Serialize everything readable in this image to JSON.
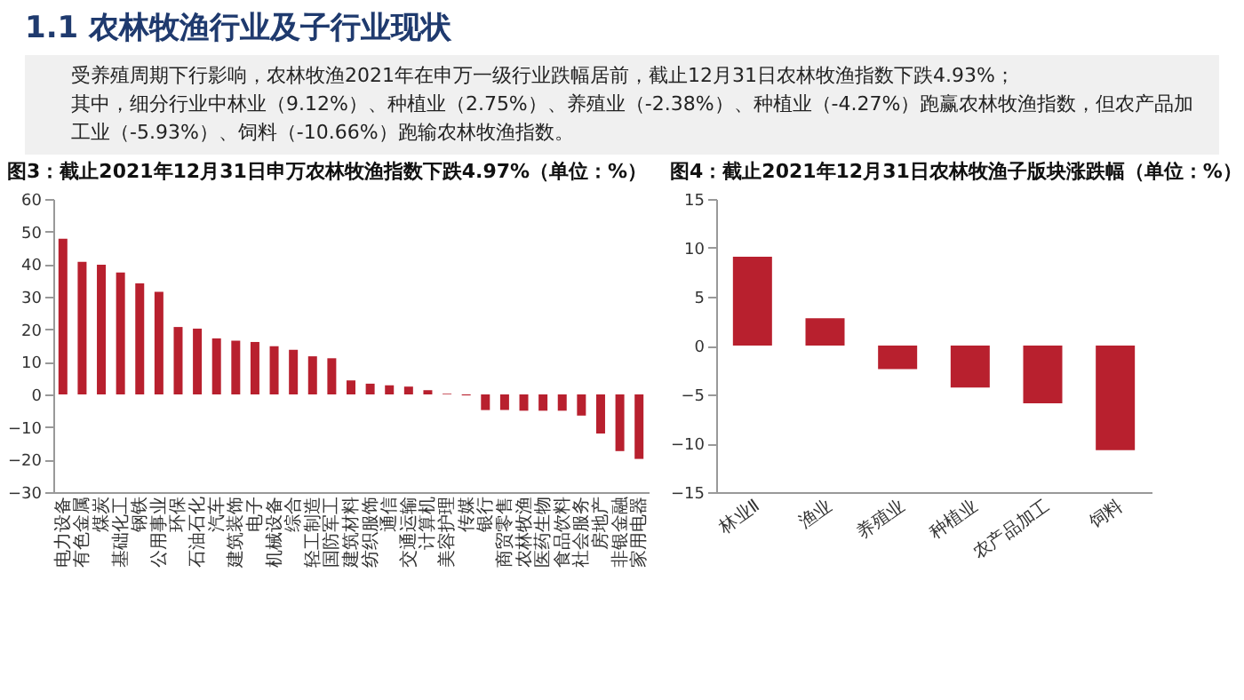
{
  "chart_data": [
    {
      "type": "other",
      "title": "1.1 农林牧渔行业及子行业现状",
      "annotations": [
        "受养殖周期下行影响，农林牧渔2021年在申万一级行业跌幅居前，截止12月31日农林牧渔指数下跌4.93%；",
        "其中，细分行业中林业（9.12%）、种植业（2.75%）、养殖业（-2.38%）、种植业（-4.27%）跑赢农林牧渔指数，但农产品加工业（-5.93%）、饲料（-10.66%）跑输农林牧渔指数。"
      ]
    },
    {
      "type": "bar",
      "title": "图3：截止2021年12月31日申万农林牧渔指数下跌4.97%（单位：%）",
      "categories": [
        "电力设备",
        "有色金属",
        "煤炭",
        "基础化工",
        "钢铁",
        "公用事业",
        "环保",
        "石油石化",
        "汽车",
        "建筑装饰",
        "电子",
        "机械设备",
        "综合",
        "轻工制造",
        "国防军工",
        "建筑材料",
        "纺织服饰",
        "通信",
        "交通运输",
        "计算机",
        "美容护理",
        "传媒",
        "银行",
        "商贸零售",
        "农林牧渔",
        "医药生物",
        "食品饮料",
        "社会服务",
        "房地产",
        "非银金融",
        "家用电器"
      ],
      "values": [
        47.8,
        40.7,
        39.8,
        37.4,
        34.1,
        31.5,
        20.7,
        20.2,
        17.2,
        16.5,
        16.1,
        14.8,
        13.7,
        11.7,
        11.1,
        4.3,
        3.3,
        2.8,
        2.4,
        1.3,
        0.2,
        -0.3,
        -4.8,
        -4.8,
        -5.0,
        -5.0,
        -5.0,
        -6.5,
        -12.0,
        -17.4,
        -19.8
      ],
      "color": "#b8202e",
      "ylim": [
        -30,
        60
      ],
      "yticks": [
        -30,
        -20,
        -10,
        0,
        10,
        20,
        30,
        40,
        50,
        60
      ]
    },
    {
      "type": "bar",
      "title": "图4：截止2021年12月31日农林牧渔子版块涨跌幅（单位：%）",
      "categories": [
        "林业Ⅱ",
        "渔业",
        "养殖业",
        "种植业",
        "农产品加工",
        "饲料"
      ],
      "values": [
        9.1,
        2.8,
        -2.4,
        -4.3,
        -5.9,
        -10.7
      ],
      "color": "#b8202e",
      "ylim": [
        -15,
        15
      ],
      "yticks": [
        -15,
        -10,
        -5,
        0,
        5,
        10,
        15
      ]
    }
  ]
}
